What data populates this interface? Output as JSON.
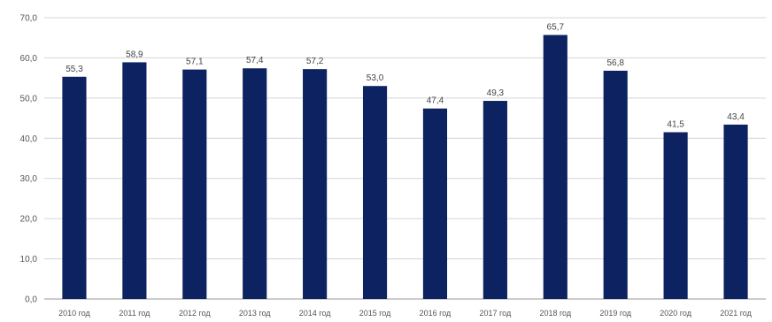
{
  "chart_data": {
    "type": "bar",
    "categories": [
      "2010 год",
      "2011 год",
      "2012 год",
      "2013 год",
      "2014 год",
      "2015 год",
      "2016 год",
      "2017 год",
      "2018 год",
      "2019 год",
      "2020 год",
      "2021 год"
    ],
    "values": [
      55.3,
      58.9,
      57.1,
      57.4,
      57.2,
      53.0,
      47.4,
      49.3,
      65.7,
      56.8,
      41.5,
      43.4
    ],
    "value_labels": [
      "55,3",
      "58,9",
      "57,1",
      "57,4",
      "57,2",
      "53,0",
      "47,4",
      "49,3",
      "65,7",
      "56,8",
      "41,5",
      "43,4"
    ],
    "y_ticks": [
      "0,0",
      "10,0",
      "20,0",
      "30,0",
      "40,0",
      "50,0",
      "60,0",
      "70,0"
    ],
    "title": "",
    "xlabel": "",
    "ylabel": "",
    "ylim": [
      0,
      70
    ],
    "grid": true,
    "legend": "none",
    "bar_color": "#0d2260",
    "grid_color": "#d4d4d4"
  }
}
